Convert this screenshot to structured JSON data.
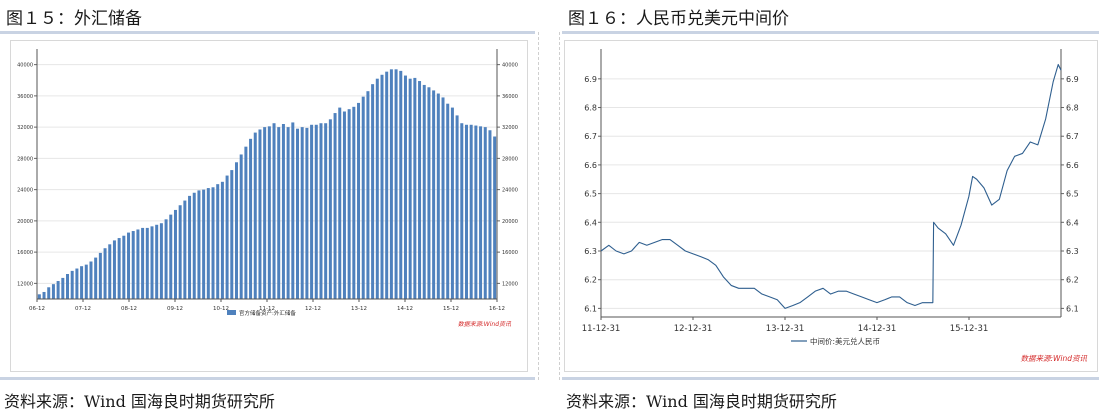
{
  "left": {
    "title": "图１５：外汇储备",
    "source": "资料来源：Wind 国海良时期货研究所",
    "chart_data": {
      "type": "bar",
      "legend": "官方储备资产:外汇储备",
      "watermark": "数据来源:Wind资讯",
      "ylim": [
        10000,
        42000
      ],
      "yticks": [
        12000,
        16000,
        20000,
        24000,
        28000,
        32000,
        36000,
        40000
      ],
      "xticks": [
        "06-12",
        "07-12",
        "08-12",
        "09-12",
        "10-12",
        "11-12",
        "12-12",
        "13-12",
        "14-12",
        "15-12",
        "16-12"
      ],
      "values": [
        10600,
        10900,
        11500,
        11900,
        12300,
        12700,
        13200,
        13600,
        13900,
        14200,
        14400,
        14800,
        15300,
        15900,
        16500,
        17000,
        17500,
        17800,
        18100,
        18500,
        18700,
        18900,
        19100,
        19100,
        19300,
        19500,
        19700,
        20200,
        20800,
        21400,
        22000,
        22600,
        23200,
        23600,
        23900,
        24000,
        24200,
        24300,
        24700,
        25000,
        25800,
        26500,
        27500,
        28500,
        29500,
        30500,
        31300,
        31700,
        32000,
        32100,
        32500,
        32000,
        32400,
        32000,
        32600,
        31800,
        32000,
        31900,
        32300,
        32300,
        32500,
        32500,
        33000,
        33800,
        34500,
        34000,
        34300,
        34600,
        35100,
        35900,
        36600,
        37500,
        38200,
        38700,
        39100,
        39400,
        39400,
        39200,
        38600,
        38200,
        38300,
        37900,
        37400,
        37100,
        36700,
        36300,
        35800,
        35000,
        34500,
        33500,
        32500,
        32300,
        32300,
        32200,
        32100,
        32000,
        31600,
        30800
      ]
    }
  },
  "right": {
    "title": "图１６：人民币兑美元中间价",
    "source": "资料来源：Wind 国海良时期货研究所",
    "chart_data": {
      "type": "line",
      "legend": "中间价:美元兑人民币",
      "watermark": "数据来源:Wind资讯",
      "ylim": [
        6.07,
        6.99
      ],
      "yticks": [
        6.1,
        6.2,
        6.3,
        6.4,
        6.5,
        6.6,
        6.7,
        6.8,
        6.9
      ],
      "xlim": [
        "2011-12-31",
        "2016-12-31"
      ],
      "xticks": [
        "11-12-31",
        "12-12-31",
        "13-12-31",
        "14-12-31",
        "15-12-31"
      ],
      "points": [
        [
          "2011-12-31",
          6.3
        ],
        [
          "2012-01-31",
          6.32
        ],
        [
          "2012-02-29",
          6.3
        ],
        [
          "2012-03-31",
          6.29
        ],
        [
          "2012-04-30",
          6.3
        ],
        [
          "2012-05-31",
          6.33
        ],
        [
          "2012-06-30",
          6.32
        ],
        [
          "2012-07-31",
          6.33
        ],
        [
          "2012-08-31",
          6.34
        ],
        [
          "2012-09-30",
          6.34
        ],
        [
          "2012-10-31",
          6.32
        ],
        [
          "2012-11-30",
          6.3
        ],
        [
          "2012-12-31",
          6.29
        ],
        [
          "2013-01-31",
          6.28
        ],
        [
          "2013-02-28",
          6.27
        ],
        [
          "2013-03-31",
          6.25
        ],
        [
          "2013-04-30",
          6.21
        ],
        [
          "2013-05-31",
          6.18
        ],
        [
          "2013-06-30",
          6.17
        ],
        [
          "2013-07-31",
          6.17
        ],
        [
          "2013-08-31",
          6.17
        ],
        [
          "2013-09-30",
          6.15
        ],
        [
          "2013-10-31",
          6.14
        ],
        [
          "2013-11-30",
          6.13
        ],
        [
          "2013-12-31",
          6.1
        ],
        [
          "2014-01-31",
          6.11
        ],
        [
          "2014-02-28",
          6.12
        ],
        [
          "2014-03-31",
          6.14
        ],
        [
          "2014-04-30",
          6.16
        ],
        [
          "2014-05-31",
          6.17
        ],
        [
          "2014-06-30",
          6.15
        ],
        [
          "2014-07-31",
          6.16
        ],
        [
          "2014-08-31",
          6.16
        ],
        [
          "2014-09-30",
          6.15
        ],
        [
          "2014-10-31",
          6.14
        ],
        [
          "2014-11-30",
          6.13
        ],
        [
          "2014-12-31",
          6.12
        ],
        [
          "2015-01-31",
          6.13
        ],
        [
          "2015-02-28",
          6.14
        ],
        [
          "2015-03-31",
          6.14
        ],
        [
          "2015-04-30",
          6.12
        ],
        [
          "2015-05-31",
          6.11
        ],
        [
          "2015-06-30",
          6.12
        ],
        [
          "2015-07-31",
          6.12
        ],
        [
          "2015-08-10",
          6.12
        ],
        [
          "2015-08-13",
          6.4
        ],
        [
          "2015-08-31",
          6.38
        ],
        [
          "2015-09-30",
          6.36
        ],
        [
          "2015-10-31",
          6.32
        ],
        [
          "2015-11-30",
          6.39
        ],
        [
          "2015-12-31",
          6.49
        ],
        [
          "2016-01-15",
          6.56
        ],
        [
          "2016-01-31",
          6.55
        ],
        [
          "2016-02-29",
          6.52
        ],
        [
          "2016-03-31",
          6.46
        ],
        [
          "2016-04-30",
          6.48
        ],
        [
          "2016-05-31",
          6.58
        ],
        [
          "2016-06-30",
          6.63
        ],
        [
          "2016-07-31",
          6.64
        ],
        [
          "2016-08-31",
          6.68
        ],
        [
          "2016-09-30",
          6.67
        ],
        [
          "2016-10-31",
          6.76
        ],
        [
          "2016-11-30",
          6.89
        ],
        [
          "2016-12-20",
          6.95
        ],
        [
          "2016-12-31",
          6.93
        ]
      ]
    }
  }
}
